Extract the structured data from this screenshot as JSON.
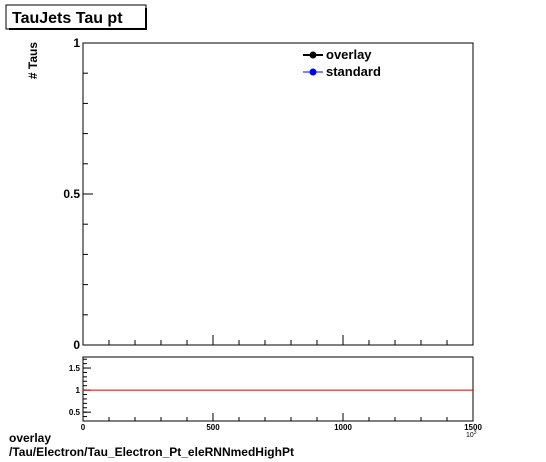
{
  "chart_data": {
    "type": "line",
    "title": "TauJets Tau pt",
    "ylabel": "# Taus",
    "xlabel": "",
    "xlim": [
      0,
      1500
    ],
    "ylim": [
      0,
      1
    ],
    "x_ticks": [
      "0",
      "500",
      "1000",
      "1500"
    ],
    "y_ticks": [
      "0",
      "0.5",
      "1"
    ],
    "x_exponent_label": "10^3",
    "legend_position": "top-right",
    "series": [
      {
        "name": "overlay",
        "color": "#000000",
        "marker": "circle",
        "x": [],
        "y": []
      },
      {
        "name": "standard",
        "color": "#0000ff",
        "marker": "circle",
        "x": [],
        "y": []
      }
    ],
    "ratio_panel": {
      "ylim": [
        0.3,
        1.75
      ],
      "y_ticks": [
        "0.5",
        "1",
        "1.5"
      ],
      "reference_value": 1,
      "reference_color": "#cc0000"
    }
  },
  "footer": {
    "line1": "overlay",
    "line2": "/Tau/Electron/Tau_Electron_Pt_eleRNNmedHighPt"
  }
}
